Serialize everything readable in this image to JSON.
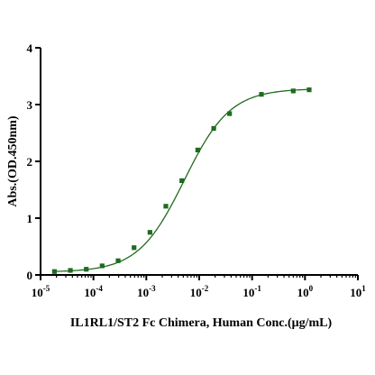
{
  "chart_data": {
    "type": "scatter",
    "title": "",
    "xlabel": "IL1RL1/ST2 Fc Chimera, Human Conc.(μg/mL)",
    "ylabel": "Abs.(OD.450nm)",
    "x_scale": "log",
    "xlim": [
      1e-05,
      10
    ],
    "ylim": [
      0,
      4
    ],
    "x_ticks": [
      {
        "base": "10",
        "exp": "-5"
      },
      {
        "base": "10",
        "exp": "-4"
      },
      {
        "base": "10",
        "exp": "-3"
      },
      {
        "base": "10",
        "exp": "-2"
      },
      {
        "base": "10",
        "exp": "-1"
      },
      {
        "base": "10",
        "exp": "0"
      },
      {
        "base": "10",
        "exp": "1"
      }
    ],
    "y_ticks": [
      "0",
      "1",
      "2",
      "3",
      "4"
    ],
    "grid": false,
    "legend": "none",
    "color": "#1f6b1f",
    "fit_curve": "sigmoidal (4PL) fit line through points",
    "series": [
      {
        "x": [
          1.83e-05,
          3.66e-05,
          7.32e-05,
          0.000146,
          0.000293,
          0.000586,
          0.00117,
          0.00234,
          0.00469,
          0.00938,
          0.0188,
          0.0375,
          0.15,
          0.6,
          1.2
        ],
        "y": [
          0.06,
          0.08,
          0.1,
          0.16,
          0.25,
          0.48,
          0.75,
          1.21,
          1.66,
          2.2,
          2.58,
          2.84,
          3.18,
          3.24,
          3.26
        ]
      }
    ]
  }
}
